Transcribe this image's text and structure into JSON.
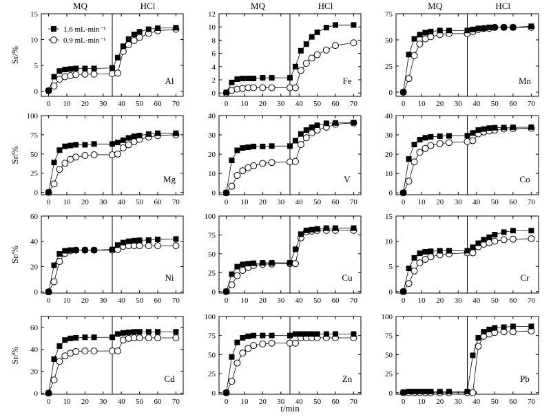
{
  "figure": {
    "xlabel": "t/min",
    "ylabel": "Sr/%",
    "phase_left": "MQ",
    "phase_right": "HCl",
    "x_ticks": [
      0,
      10,
      20,
      30,
      40,
      50,
      60,
      70
    ],
    "xlim": [
      -4,
      74
    ],
    "divider_x": 35
  },
  "legend": [
    {
      "name": "1.6 mL·min⁻¹",
      "marker": "filled-square"
    },
    {
      "name": "0.9 mL·min⁻¹",
      "marker": "open-circle"
    }
  ],
  "chart_data": [
    {
      "type": "scatter",
      "element": "Al",
      "ylim": [
        -1,
        15
      ],
      "yticks": [
        0,
        5,
        10,
        15
      ],
      "x": [
        0,
        3,
        6,
        9,
        12,
        15,
        20,
        25,
        35,
        38,
        41,
        44,
        47,
        50,
        55,
        60,
        70
      ],
      "series": [
        {
          "name": "1.6 mL·min⁻¹",
          "values": [
            0.1,
            2.8,
            3.9,
            4.2,
            4.3,
            4.4,
            4.4,
            4.4,
            4.5,
            6.5,
            8.7,
            10.1,
            11.0,
            11.5,
            12.0,
            12.2,
            12.3
          ]
        },
        {
          "name": "0.9 mL·min⁻¹",
          "values": [
            0.1,
            1.0,
            2.3,
            2.8,
            3.0,
            3.2,
            3.3,
            3.3,
            3.4,
            3.5,
            7.7,
            9.0,
            9.8,
            10.4,
            11.2,
            11.7,
            12.0
          ]
        }
      ]
    },
    {
      "type": "scatter",
      "element": "Fe",
      "ylim": [
        -0.5,
        12
      ],
      "yticks": [
        0,
        2,
        4,
        6,
        8,
        10,
        12
      ],
      "x": [
        0,
        3,
        6,
        9,
        12,
        15,
        20,
        25,
        35,
        38,
        41,
        44,
        47,
        50,
        55,
        60,
        70
      ],
      "series": [
        {
          "name": "1.6 mL·min⁻¹",
          "values": [
            0.1,
            1.6,
            2.1,
            2.2,
            2.2,
            2.2,
            2.3,
            2.3,
            2.3,
            4.0,
            6.4,
            7.4,
            8.5,
            9.2,
            9.9,
            10.3,
            10.3
          ]
        },
        {
          "name": "0.9 mL·min⁻¹",
          "values": [
            0.0,
            0.4,
            0.6,
            0.7,
            0.8,
            0.8,
            0.8,
            0.8,
            0.8,
            0.8,
            3.4,
            4.5,
            5.3,
            5.8,
            6.5,
            7.2,
            7.6
          ]
        }
      ]
    },
    {
      "type": "scatter",
      "element": "Mn",
      "ylim": [
        -4,
        75
      ],
      "yticks": [
        0,
        25,
        50,
        75
      ],
      "x": [
        0,
        3,
        6,
        9,
        12,
        15,
        20,
        25,
        35,
        38,
        41,
        44,
        47,
        50,
        55,
        60,
        70
      ],
      "series": [
        {
          "name": "1.6 mL·min⁻¹",
          "values": [
            0,
            36,
            51,
            55,
            57,
            58,
            59,
            59,
            59,
            60,
            61,
            61,
            62,
            62,
            62,
            62,
            63
          ]
        },
        {
          "name": "0.9 mL·min⁻¹",
          "values": [
            0,
            13,
            35,
            46,
            51,
            53,
            55,
            56,
            56,
            58,
            60,
            61,
            61,
            62,
            62,
            62,
            62
          ]
        }
      ]
    },
    {
      "type": "scatter",
      "element": "Mg",
      "ylim": [
        -3,
        100
      ],
      "yticks": [
        0,
        25,
        50,
        75,
        100
      ],
      "x": [
        0,
        3,
        6,
        9,
        12,
        15,
        20,
        25,
        35,
        38,
        41,
        44,
        47,
        50,
        55,
        60,
        70
      ],
      "series": [
        {
          "name": "1.6 mL·min⁻¹",
          "values": [
            0,
            39,
            55,
            60,
            61,
            62,
            62,
            63,
            63,
            65,
            68,
            71,
            73,
            74,
            76,
            77,
            77
          ]
        },
        {
          "name": "0.9 mL·min⁻¹",
          "values": [
            0,
            11,
            30,
            38,
            43,
            46,
            48,
            49,
            49,
            50,
            58,
            62,
            66,
            69,
            72,
            74,
            75
          ]
        }
      ]
    },
    {
      "type": "scatter",
      "element": "V",
      "ylim": [
        -1,
        40
      ],
      "yticks": [
        0,
        10,
        20,
        30,
        40
      ],
      "x": [
        0,
        3,
        6,
        9,
        12,
        15,
        20,
        25,
        35,
        38,
        41,
        44,
        47,
        50,
        55,
        60,
        70
      ],
      "series": [
        {
          "name": "1.6 mL·min⁻¹",
          "values": [
            0,
            16.8,
            22,
            23.2,
            23.6,
            24,
            24,
            24.2,
            24.2,
            27,
            30.5,
            32.5,
            34,
            35,
            36,
            36.2,
            36.4
          ]
        },
        {
          "name": "0.9 mL·min⁻¹",
          "values": [
            0,
            3.4,
            9,
            11.4,
            13,
            14,
            15.2,
            15.7,
            16,
            16.2,
            25,
            28.5,
            31,
            32.5,
            34,
            35.5,
            36.2
          ]
        }
      ]
    },
    {
      "type": "scatter",
      "element": "Co",
      "ylim": [
        -1,
        40
      ],
      "yticks": [
        0,
        10,
        20,
        30,
        40
      ],
      "x": [
        0,
        3,
        6,
        9,
        12,
        15,
        20,
        25,
        35,
        38,
        41,
        44,
        47,
        50,
        55,
        60,
        70
      ],
      "series": [
        {
          "name": "1.6 mL·min⁻¹",
          "values": [
            0,
            17.5,
            25,
            27.5,
            28.5,
            29,
            29.3,
            29.5,
            29.6,
            31,
            32.5,
            33,
            33.5,
            33.7,
            33.8,
            33.9,
            34
          ]
        },
        {
          "name": "0.9 mL·min⁻¹",
          "values": [
            0,
            6,
            16,
            21,
            23,
            24.5,
            25.5,
            26,
            26.5,
            27,
            30.5,
            31.5,
            32,
            32.5,
            33,
            33.2,
            33.4
          ]
        }
      ]
    },
    {
      "type": "scatter",
      "element": "Ni",
      "ylim": [
        -1,
        60
      ],
      "yticks": [
        0,
        20,
        40,
        60
      ],
      "x": [
        0,
        3,
        6,
        9,
        12,
        15,
        20,
        25,
        35,
        38,
        41,
        44,
        47,
        50,
        55,
        60,
        70
      ],
      "series": [
        {
          "name": "1.6 mL·min⁻¹",
          "values": [
            0,
            21,
            30,
            32.5,
            33,
            33,
            33,
            33,
            33.5,
            37,
            39,
            40,
            40.5,
            40.8,
            41,
            41.5,
            41.8
          ]
        },
        {
          "name": "0.9 mL·min⁻¹",
          "values": [
            0,
            8,
            24,
            30.5,
            32.5,
            33,
            33,
            33,
            33,
            33.5,
            36,
            36.5,
            36.5,
            36.5,
            36.5,
            36.5,
            36.5
          ]
        }
      ]
    },
    {
      "type": "scatter",
      "element": "Cu",
      "ylim": [
        -2,
        100
      ],
      "yticks": [
        0,
        25,
        50,
        75,
        100
      ],
      "x": [
        0,
        3,
        6,
        9,
        12,
        15,
        20,
        25,
        35,
        38,
        41,
        44,
        47,
        50,
        55,
        60,
        70
      ],
      "series": [
        {
          "name": "1.6 mL·min⁻¹",
          "values": [
            0,
            23,
            33,
            36,
            37,
            37.5,
            38,
            38,
            38,
            56,
            76,
            81,
            82,
            83,
            84,
            84,
            84
          ]
        },
        {
          "name": "0.9 mL·min⁻¹",
          "values": [
            0,
            9,
            21,
            28,
            32,
            34.5,
            36,
            36.5,
            37,
            37,
            71,
            79,
            80,
            81,
            81,
            81,
            81
          ]
        }
      ]
    },
    {
      "type": "scatter",
      "element": "Cr",
      "ylim": [
        -0.3,
        15
      ],
      "yticks": [
        0,
        5,
        10,
        15
      ],
      "x": [
        0,
        3,
        6,
        9,
        12,
        15,
        20,
        25,
        35,
        38,
        41,
        44,
        47,
        50,
        55,
        60,
        70
      ],
      "series": [
        {
          "name": "1.6 mL·min⁻¹",
          "values": [
            0,
            4.6,
            6.7,
            7.6,
            7.9,
            8.0,
            8.1,
            8.1,
            8.1,
            8.8,
            9.6,
            10.3,
            10.8,
            11.3,
            11.8,
            12.1,
            12.1
          ]
        },
        {
          "name": "0.9 mL·min⁻¹",
          "values": [
            0,
            1.6,
            4.1,
            5.7,
            6.4,
            6.9,
            7.3,
            7.5,
            7.7,
            7.7,
            8.9,
            9.4,
            9.7,
            10.0,
            10.3,
            10.4,
            10.5
          ]
        }
      ]
    },
    {
      "type": "scatter",
      "element": "Cd",
      "ylim": [
        -1,
        70
      ],
      "yticks": [
        0,
        20,
        40,
        60
      ],
      "x": [
        0,
        3,
        6,
        9,
        12,
        15,
        20,
        25,
        35,
        38,
        41,
        44,
        47,
        50,
        55,
        60,
        70
      ],
      "series": [
        {
          "name": "1.6 mL·min⁻¹",
          "values": [
            0,
            31,
            43,
            48.5,
            50,
            50.5,
            51,
            51,
            51,
            54,
            55,
            55.5,
            56,
            56,
            56,
            56,
            56
          ]
        },
        {
          "name": "0.9 mL·min⁻¹",
          "values": [
            0,
            12,
            29,
            34,
            36.5,
            38,
            38.5,
            38.5,
            38.5,
            38.5,
            48.5,
            50,
            50.5,
            50.5,
            50.5,
            50.5,
            50.5
          ]
        }
      ]
    },
    {
      "type": "scatter",
      "element": "Zn",
      "ylim": [
        -2,
        100
      ],
      "yticks": [
        0,
        25,
        50,
        75,
        100
      ],
      "x": [
        0,
        3,
        6,
        9,
        12,
        15,
        20,
        25,
        35,
        38,
        41,
        44,
        47,
        50,
        55,
        60,
        70
      ],
      "series": [
        {
          "name": "1.6 mL·min⁻¹",
          "values": [
            0,
            47,
            66,
            72,
            74,
            75,
            75,
            75,
            75,
            77,
            77,
            77,
            77,
            77,
            77,
            77,
            77
          ]
        },
        {
          "name": "0.9 mL·min⁻¹",
          "values": [
            0,
            15,
            39,
            52,
            58,
            62,
            64,
            65,
            65,
            65,
            72,
            72,
            72,
            72,
            72,
            72,
            72
          ]
        }
      ]
    },
    {
      "type": "scatter",
      "element": "Pb",
      "ylim": [
        -2,
        100
      ],
      "yticks": [
        0,
        25,
        50,
        75,
        100
      ],
      "x": [
        0,
        3,
        6,
        9,
        12,
        15,
        20,
        25,
        35,
        38,
        41,
        44,
        47,
        50,
        55,
        60,
        70
      ],
      "series": [
        {
          "name": "1.6 mL·min⁻¹",
          "values": [
            0.5,
            1.5,
            1.5,
            1.5,
            1.5,
            1.5,
            1.5,
            1.5,
            1.5,
            49,
            72,
            80,
            83,
            85,
            86,
            87,
            87
          ]
        },
        {
          "name": "0.9 mL·min⁻¹",
          "values": [
            0,
            0,
            0,
            0,
            0,
            0,
            0,
            0,
            0,
            0,
            61,
            74,
            77,
            79,
            80,
            80,
            81
          ]
        }
      ]
    }
  ]
}
